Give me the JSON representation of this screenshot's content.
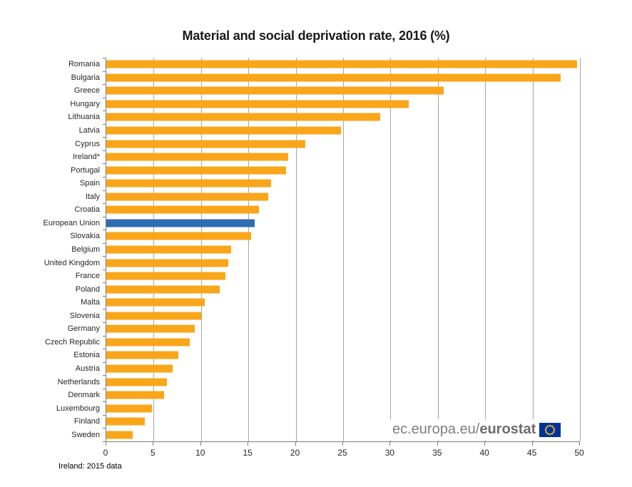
{
  "title": "Material and social deprivation rate, 2016 (%)",
  "footnote": "Ireland: 2015 data",
  "watermark": {
    "url_prefix": "ec.europa.eu/",
    "brand": "eurostat",
    "flag_icon": "eu-flag-icon"
  },
  "colors": {
    "bar_orange": "#F9A61B",
    "bar_eu_blue": "#2E6DB4",
    "gridline": "#A6A6A6",
    "axis": "#7F7F7F",
    "title_text": "#1A1A1A",
    "label_text": "#262626",
    "watermark_text": "#7F7F7F",
    "flag_blue": "#003399",
    "flag_stars": "#FFCC00",
    "background": "#FFFFFF"
  },
  "chart_data": {
    "type": "bar",
    "orientation": "horizontal",
    "title": "Material and social deprivation rate, 2016 (%)",
    "xlabel": "",
    "ylabel": "",
    "xlim": [
      0,
      50
    ],
    "xticks": [
      0,
      5,
      10,
      15,
      20,
      25,
      30,
      35,
      40,
      45,
      50
    ],
    "grid": "vertical-gridlines-on",
    "legend": "none",
    "highlight_category": "European Union",
    "categories": [
      "Romania",
      "Bulgaria",
      "Greece",
      "Hungary",
      "Lithuania",
      "Latvia",
      "Cyprus",
      "Ireland*",
      "Portugal",
      "Spain",
      "Italy",
      "Croatia",
      "European Union",
      "Slovakia",
      "Belgium",
      "United Kingdom",
      "France",
      "Poland",
      "Malta",
      "Slovenia",
      "Germany",
      "Czech Republic",
      "Estonia",
      "Austria",
      "Netherlands",
      "Denmark",
      "Luxembourg",
      "Finland",
      "Sweden"
    ],
    "values": [
      49.7,
      48.0,
      35.6,
      31.9,
      28.9,
      24.8,
      21.0,
      19.2,
      19.0,
      17.4,
      17.1,
      16.1,
      15.7,
      15.3,
      13.2,
      12.9,
      12.6,
      12.0,
      10.4,
      10.0,
      9.3,
      8.8,
      7.6,
      7.0,
      6.4,
      6.1,
      4.8,
      4.1,
      2.8
    ]
  }
}
